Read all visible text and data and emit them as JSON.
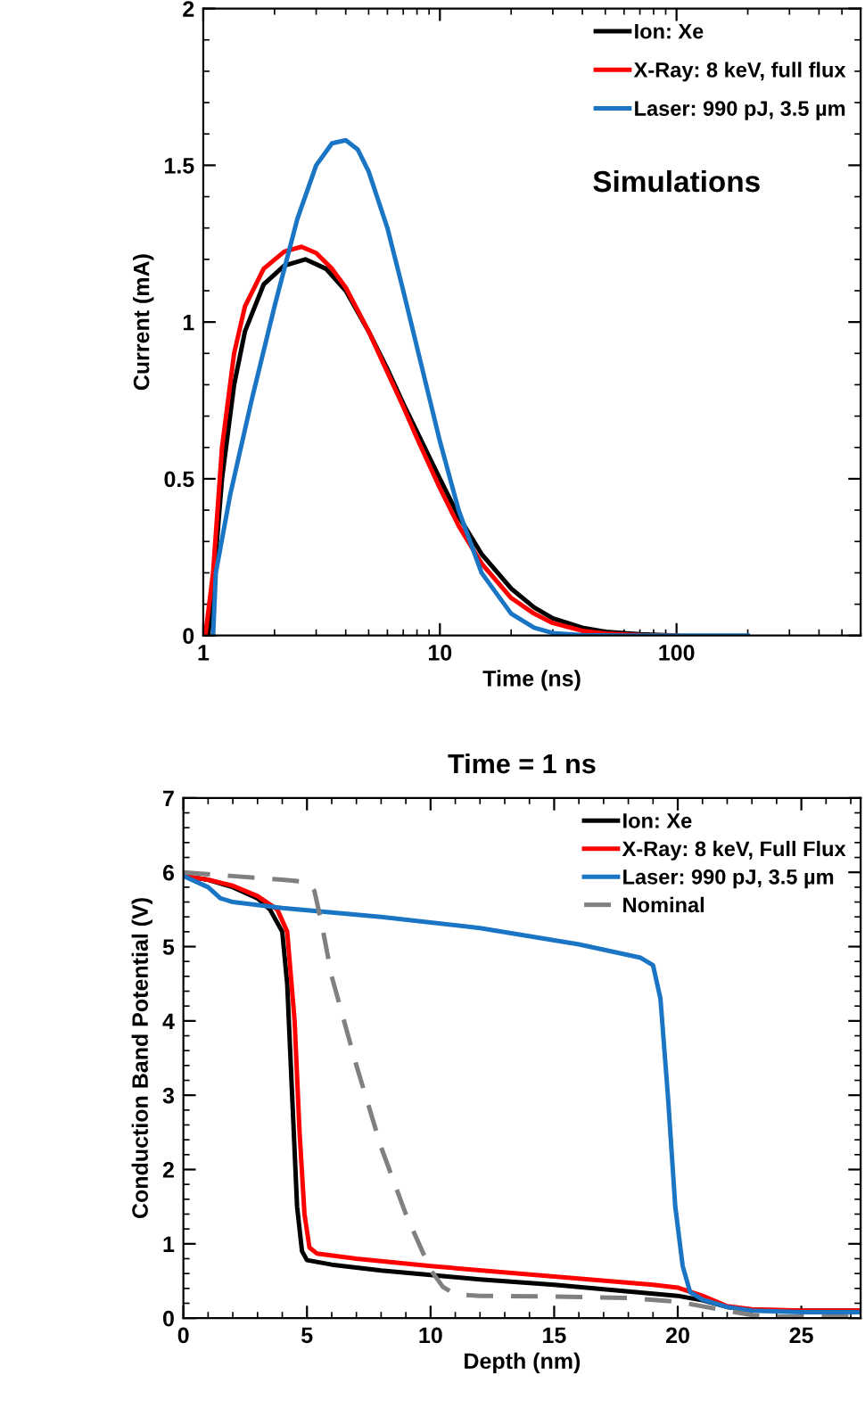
{
  "chart_data": [
    {
      "type": "line",
      "xlabel": "Time (ns)",
      "ylabel": "Current (mA)",
      "log": "x",
      "xlim": [
        1,
        600
      ],
      "xticks": [
        1,
        10,
        100
      ],
      "ylim": [
        0,
        2
      ],
      "yticks": [
        0,
        0.5,
        1,
        1.5,
        2
      ],
      "grid": false,
      "legend": "top right",
      "line_style": "solid",
      "marker": "none",
      "annotations": [
        "Simulations"
      ],
      "series": [
        {
          "name": "Ion: Xe",
          "color": "#000000",
          "x": [
            1.05,
            1.1,
            1.2,
            1.35,
            1.5,
            1.8,
            2.2,
            2.7,
            3.3,
            4,
            5,
            6,
            7,
            8,
            10,
            12,
            15,
            20,
            25,
            30,
            40,
            50,
            70,
            100
          ],
          "values": [
            0,
            0.15,
            0.5,
            0.8,
            0.97,
            1.12,
            1.18,
            1.2,
            1.17,
            1.1,
            0.97,
            0.85,
            0.74,
            0.65,
            0.5,
            0.38,
            0.26,
            0.15,
            0.09,
            0.055,
            0.025,
            0.012,
            0.004,
            0
          ]
        },
        {
          "name": "X-Ray: 8 keV, full flux",
          "color": "#ff0000",
          "x": [
            1.02,
            1.1,
            1.2,
            1.35,
            1.5,
            1.8,
            2.2,
            2.6,
            3,
            3.5,
            4,
            5,
            6,
            7,
            8,
            10,
            12,
            15,
            20,
            25,
            30,
            40,
            50,
            70,
            100
          ],
          "values": [
            0,
            0.2,
            0.6,
            0.9,
            1.05,
            1.17,
            1.225,
            1.24,
            1.22,
            1.17,
            1.11,
            0.97,
            0.84,
            0.73,
            0.63,
            0.47,
            0.35,
            0.23,
            0.12,
            0.07,
            0.04,
            0.015,
            0.006,
            0.001,
            0
          ]
        },
        {
          "name": "Laser: 990 pJ, 3.5 µm",
          "color": "#1a75c4",
          "x": [
            1.1,
            1.13,
            1.3,
            1.6,
            2,
            2.5,
            3,
            3.5,
            4,
            4.5,
            5,
            6,
            7,
            8,
            10,
            12,
            15,
            20,
            25,
            30,
            40,
            60,
            100,
            200
          ],
          "values": [
            0,
            0.2,
            0.45,
            0.75,
            1.05,
            1.33,
            1.5,
            1.57,
            1.58,
            1.55,
            1.48,
            1.3,
            1.1,
            0.92,
            0.62,
            0.4,
            0.2,
            0.07,
            0.025,
            0.008,
            0.001,
            0,
            0,
            0
          ]
        }
      ]
    },
    {
      "type": "line",
      "title": "Time = 1 ns",
      "xlabel": "Depth (nm)",
      "ylabel": "Conduction Band Potential (V)",
      "xlim": [
        0,
        27.4
      ],
      "xticks": [
        0,
        5,
        10,
        15,
        20,
        25
      ],
      "ylim": [
        0,
        7
      ],
      "yticks": [
        0,
        1,
        2,
        3,
        4,
        5,
        6,
        7
      ],
      "grid": false,
      "legend": "top right",
      "marker": "none",
      "series": [
        {
          "name": "Ion: Xe",
          "color": "#000000",
          "line_style": "solid",
          "x": [
            0,
            1,
            2,
            3,
            3.5,
            4,
            4.2,
            4.4,
            4.6,
            4.8,
            5,
            6,
            8,
            10,
            12,
            15,
            18,
            20,
            21,
            22,
            23,
            25,
            27.4
          ],
          "values": [
            5.95,
            5.9,
            5.8,
            5.65,
            5.5,
            5.2,
            4.5,
            3,
            1.5,
            0.9,
            0.78,
            0.72,
            0.64,
            0.58,
            0.52,
            0.45,
            0.36,
            0.3,
            0.24,
            0.15,
            0.11,
            0.1,
            0.1
          ]
        },
        {
          "name": "X-Ray: 8 keV, Full Flux",
          "color": "#ff0000",
          "line_style": "solid",
          "x": [
            0,
            1,
            2,
            3,
            3.8,
            4.2,
            4.5,
            4.7,
            4.9,
            5.1,
            5.4,
            7,
            10,
            15,
            19,
            20,
            21,
            22,
            23,
            25,
            27.4
          ],
          "values": [
            5.95,
            5.9,
            5.82,
            5.68,
            5.5,
            5.2,
            4,
            2.5,
            1.4,
            0.95,
            0.87,
            0.8,
            0.7,
            0.56,
            0.45,
            0.41,
            0.3,
            0.16,
            0.12,
            0.1,
            0.1
          ]
        },
        {
          "name": "Laser: 990 pJ, 3.5 µm",
          "color": "#1a75c4",
          "line_style": "solid",
          "x": [
            0,
            1,
            1.5,
            2,
            4,
            8,
            12,
            16,
            18.5,
            19,
            19.3,
            19.6,
            19.9,
            20.2,
            20.5,
            21,
            22,
            23,
            25,
            27.4
          ],
          "values": [
            5.95,
            5.8,
            5.65,
            5.6,
            5.52,
            5.4,
            5.25,
            5.03,
            4.85,
            4.75,
            4.3,
            3,
            1.5,
            0.7,
            0.35,
            0.25,
            0.15,
            0.1,
            0.08,
            0.08
          ]
        },
        {
          "name": "Nominal",
          "color": "#808080",
          "line_style": "dashed",
          "x": [
            0,
            2,
            4,
            5,
            5.3,
            5.6,
            6,
            7,
            8,
            9,
            10,
            10.5,
            11,
            12,
            15,
            18,
            20,
            22,
            23,
            24,
            27.4
          ],
          "values": [
            6,
            5.95,
            5.9,
            5.87,
            5.75,
            5.3,
            4.6,
            3.4,
            2.3,
            1.4,
            0.65,
            0.42,
            0.32,
            0.3,
            0.29,
            0.27,
            0.22,
            0.1,
            0.04,
            0.02,
            0.02
          ]
        }
      ]
    }
  ]
}
